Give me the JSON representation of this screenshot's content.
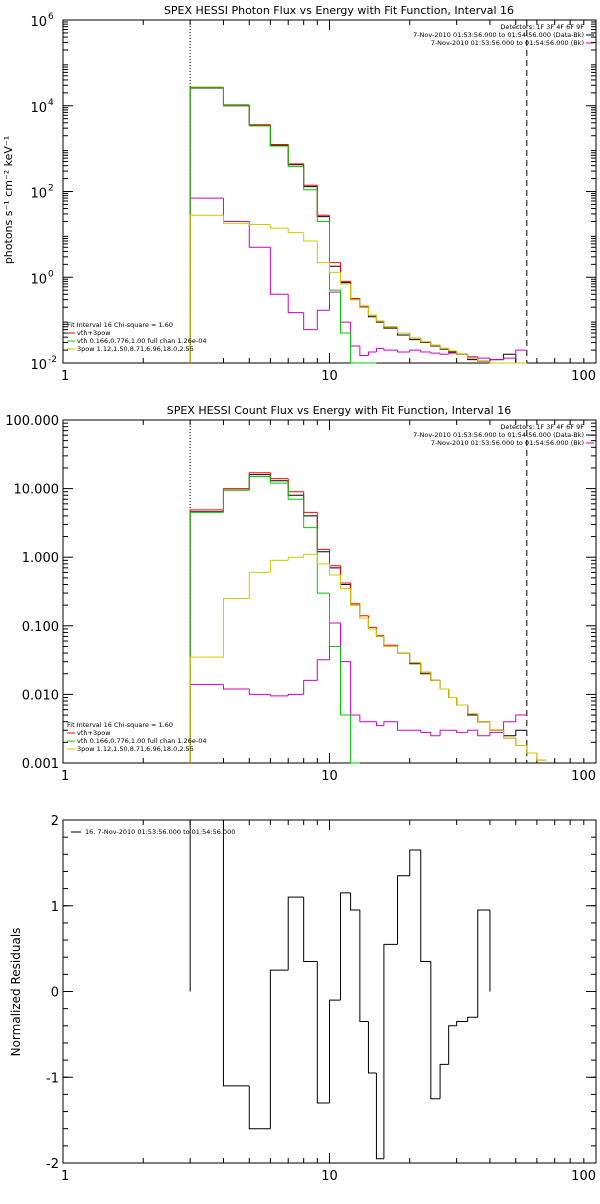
{
  "chart_data": [
    {
      "type": "line",
      "title": "SPEX HESSI Photon Flux vs Energy with Fit Function, Interval 16",
      "xlabel": "",
      "ylabel": "photons s⁻¹ cm⁻² keV⁻¹",
      "xscale": "log",
      "yscale": "log",
      "xlim": [
        1,
        100
      ],
      "ylim": [
        0.01,
        1000000
      ],
      "x_ticks": [
        1,
        10,
        100
      ],
      "x_tick_labels": [
        "1",
        "10",
        "100"
      ],
      "y_ticks": [
        0.01,
        1,
        100,
        10000,
        1000000
      ],
      "y_tick_mantissa": "10",
      "y_tick_exponents": [
        "-2",
        "0",
        "2",
        "4",
        "6"
      ],
      "annotations_top_right": [
        {
          "text": "Detectors: 1F 3F 4F 6F 9F",
          "color": "#000000"
        },
        {
          "text": "7-Nov-2010 01:53:56.000 to 01:54:56.000 (Data-Bk)",
          "color": "#000000"
        },
        {
          "text": "7-Nov-2010 01:53:56.000 to 01:54:56.000 (Bk)",
          "color": "#cc00cc"
        }
      ],
      "legend_header": "Fit Interval 16   Chi-square = 1.60",
      "legend": [
        {
          "text": "vth+3pow",
          "color": "#ff0000"
        },
        {
          "text": "vth 0.166,0.776,1.00  full chan 1.26e-04",
          "color": "#00cc00"
        },
        {
          "text": "3pow 1.12,1.50,8.71,6.96,18.0,2.55",
          "color": "#cccc00"
        }
      ],
      "vline_dotted": 3,
      "vline_dashed": 55,
      "bin_edges": [
        3,
        4,
        5,
        6,
        7,
        8,
        9,
        10,
        11,
        12,
        13,
        14,
        15,
        16,
        18,
        20,
        22,
        24,
        26,
        28,
        30,
        33,
        36,
        40,
        45,
        50,
        55
      ],
      "series": [
        {
          "name": "Data-Bk",
          "color": "#000000",
          "values": [
            26000,
            10000,
            3500,
            1200,
            420,
            130,
            26,
            1.8,
            0.75,
            0.3,
            0.2,
            0.12,
            0.09,
            0.065,
            0.045,
            0.035,
            0.03,
            0.025,
            0.021,
            0.018,
            0.016,
            0.012,
            0.011,
            0.012,
            0.016,
            0.01
          ]
        },
        {
          "name": "Bk",
          "color": "#cc00cc",
          "values": [
            70,
            20,
            5,
            0.4,
            0.15,
            0.06,
            0.17,
            0.45,
            0.09,
            0.025,
            0.015,
            0.018,
            0.022,
            0.02,
            0.018,
            0.02,
            0.018,
            0.017,
            0.016,
            0.017,
            0.016,
            0.014,
            0.013,
            0.012,
            0.013,
            0.02
          ]
        },
        {
          "name": "vth+3pow",
          "color": "#ff0000",
          "values": [
            27000,
            10500,
            3600,
            1250,
            440,
            140,
            28,
            2.2,
            0.8,
            0.32,
            0.21,
            0.13,
            0.095,
            0.07,
            0.05,
            0.038,
            0.031,
            0.026,
            0.022,
            0.019,
            0.016,
            0.013,
            0.011,
            0.01,
            0.009,
            0.008
          ]
        },
        {
          "name": "vth",
          "color": "#00cc00",
          "values": [
            26500,
            10200,
            3400,
            1150,
            380,
            110,
            20,
            0.5,
            0.05,
            0.01,
            0.005,
            0.004
          ]
        },
        {
          "name": "3pow",
          "color": "#cccc00",
          "values": [
            28,
            18,
            17,
            14,
            11,
            7,
            2.2,
            1.3,
            0.7,
            0.3,
            0.2,
            0.13,
            0.095,
            0.07,
            0.05,
            0.038,
            0.031,
            0.026,
            0.022,
            0.019,
            0.016,
            0.013,
            0.011,
            0.01,
            0.009,
            0.008
          ]
        }
      ]
    },
    {
      "type": "line",
      "title": "SPEX HESSI Count Flux vs Energy with Fit Function, Interval 16",
      "xlabel": "",
      "ylabel": "",
      "xscale": "log",
      "yscale": "log",
      "xlim": [
        1,
        100
      ],
      "ylim": [
        0.001,
        100
      ],
      "x_ticks": [
        1,
        10,
        100
      ],
      "x_tick_labels": [
        "1",
        "10",
        "100"
      ],
      "y_ticks": [
        0.001,
        0.01,
        0.1,
        1,
        10,
        100
      ],
      "y_tick_labels": [
        "0.001",
        "0.010",
        "0.100",
        "1.000",
        "10.000",
        "100.000"
      ],
      "annotations_top_right": [
        {
          "text": "Detectors: 1F 3F 4F 6F 9F",
          "color": "#000000"
        },
        {
          "text": "7-Nov-2010 01:53:56.000 to 01:54:56.000 (Data-Bk)",
          "color": "#000000"
        },
        {
          "text": "7-Nov-2010 01:53:56.000 to 01:54:56.000 (Bk)",
          "color": "#cc00cc"
        }
      ],
      "legend_header": "Fit Interval 16   Chi-square = 1.60",
      "legend": [
        {
          "text": "vth+3pow",
          "color": "#ff0000"
        },
        {
          "text": "vth 0.166,0.776,1.00  full chan 1.26e-04",
          "color": "#00cc00"
        },
        {
          "text": "3pow 1.12,1.50,8.71,6.96,18.0,2.55",
          "color": "#cccc00"
        }
      ],
      "vline_dotted": 3,
      "vline_dashed": 55,
      "bin_edges": [
        3,
        4,
        5,
        6,
        7,
        8,
        9,
        10,
        11,
        12,
        13,
        14,
        15,
        16,
        18,
        20,
        22,
        24,
        26,
        28,
        30,
        33,
        36,
        40,
        45,
        50,
        55,
        60,
        65
      ],
      "series": [
        {
          "name": "Data-Bk",
          "color": "#000000",
          "values": [
            4.6,
            9.5,
            16,
            13,
            8,
            4,
            1.2,
            0.7,
            0.4,
            0.2,
            0.13,
            0.09,
            0.07,
            0.05,
            0.04,
            0.028,
            0.02,
            0.016,
            0.012,
            0.009,
            0.007,
            0.005,
            0.004,
            0.003,
            0.0025,
            0.003
          ]
        },
        {
          "name": "Bk",
          "color": "#cc00cc",
          "values": [
            0.014,
            0.012,
            0.01,
            0.0095,
            0.01,
            0.016,
            0.032,
            0.11,
            0.03,
            0.005,
            0.004,
            0.004,
            0.0035,
            0.004,
            0.003,
            0.003,
            0.0028,
            0.0025,
            0.003,
            0.003,
            0.0028,
            0.003,
            0.0025,
            0.0028,
            0.004,
            0.005
          ]
        },
        {
          "name": "vth+3pow",
          "color": "#ff0000",
          "values": [
            4.9,
            10,
            17,
            14,
            9,
            4.5,
            1.3,
            0.75,
            0.42,
            0.21,
            0.14,
            0.095,
            0.072,
            0.052,
            0.04,
            0.029,
            0.021,
            0.016,
            0.012,
            0.009,
            0.007,
            0.0052,
            0.004,
            0.003,
            0.0023,
            0.0018,
            0.0014,
            0.0011
          ]
        },
        {
          "name": "vth",
          "color": "#00cc00",
          "values": [
            4.5,
            9.5,
            15,
            12,
            7,
            2.7,
            0.3,
            0.05,
            0.005,
            0.001
          ]
        },
        {
          "name": "3pow",
          "color": "#cccc00",
          "values": [
            0.035,
            0.25,
            0.6,
            0.9,
            1.0,
            1.1,
            0.8,
            0.55,
            0.35,
            0.2,
            0.13,
            0.09,
            0.07,
            0.05,
            0.04,
            0.029,
            0.021,
            0.016,
            0.012,
            0.009,
            0.007,
            0.0052,
            0.004,
            0.003,
            0.0023,
            0.0018,
            0.0014,
            0.0011
          ]
        }
      ]
    },
    {
      "type": "line",
      "title": "",
      "xlabel": "",
      "ylabel": "Normalized Residuals",
      "xscale": "log",
      "yscale": "linear",
      "xlim": [
        1,
        100
      ],
      "ylim": [
        -2,
        2
      ],
      "x_ticks": [
        1,
        10,
        100
      ],
      "x_tick_labels": [
        "1",
        "10",
        "100"
      ],
      "y_ticks": [
        -2,
        -1,
        0,
        1,
        2
      ],
      "y_tick_labels": [
        "-2",
        "-1",
        "0",
        "1",
        "2"
      ],
      "legend": [
        {
          "text": "16.  7-Nov-2010 01:53:56.000 to 01:54:56.000",
          "color": "#000000"
        }
      ],
      "bin_edges": [
        3,
        4,
        5,
        6,
        7,
        8,
        9,
        10,
        11,
        12,
        13,
        14,
        15,
        16,
        18,
        20,
        22,
        24,
        26,
        28,
        30,
        33,
        36,
        40,
        45,
        50,
        55
      ],
      "series": [
        {
          "name": "16",
          "color": "#000000",
          "values": [
            2.2,
            -1.1,
            -1.6,
            0.25,
            1.1,
            0.35,
            -1.3,
            -0.1,
            1.15,
            0.95,
            -0.35,
            -0.95,
            -1.95,
            0.55,
            1.35,
            1.65,
            0.35,
            -1.25,
            -0.85,
            -0.4,
            -0.35,
            -0.3,
            0.95
          ]
        }
      ]
    }
  ]
}
